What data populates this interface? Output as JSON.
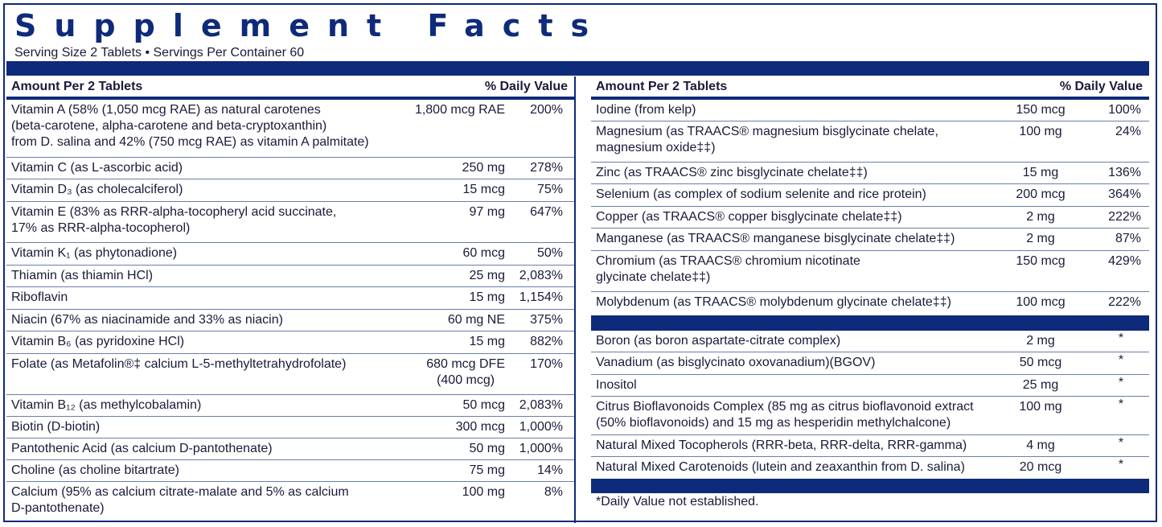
{
  "title": "Supplement Facts",
  "serving": "Serving Size 2 Tablets • Servings Per Container 60",
  "header": {
    "amount_label": "Amount Per 2 Tablets",
    "dv_label": "% Daily Value"
  },
  "left_rows": [
    {
      "name": "Vitamin A (58% (1,050 mcg RAE) as natural carotenes\n  (beta-carotene, alpha-carotene and beta-cryptoxanthin)\n  from D. salina and 42% (750 mcg RAE) as vitamin A palmitate)",
      "amount": "1,800 mcg RAE",
      "dv": "200%"
    },
    {
      "name": "Vitamin C (as L-ascorbic acid)",
      "amount": "250 mg",
      "dv": "278%"
    },
    {
      "name": "Vitamin D₃ (as cholecalciferol)",
      "amount": "15 mcg",
      "dv": "75%"
    },
    {
      "name": "Vitamin E (83% as RRR-alpha-tocopheryl acid succinate,\n  17% as RRR-alpha-tocopherol)",
      "amount": "97 mg",
      "dv": "647%"
    },
    {
      "name": "Vitamin K₁ (as phytonadione)",
      "amount": "60 mcg",
      "dv": "50%"
    },
    {
      "name": "Thiamin (as thiamin HCl)",
      "amount": "25 mg",
      "dv": "2,083%"
    },
    {
      "name": "Riboflavin",
      "amount": "15 mg",
      "dv": "1,154%"
    },
    {
      "name": "Niacin (67% as niacinamide and 33% as niacin)",
      "amount": "60 mg NE",
      "dv": "375%"
    },
    {
      "name": "Vitamin B₆ (as pyridoxine HCl)",
      "amount": "15 mg",
      "dv": "882%"
    },
    {
      "name": "Folate (as Metafolin®‡ calcium L-5-methyltetrahydrofolate)",
      "amount": "680 mcg DFE\n(400 mcg)",
      "dv": "170%"
    },
    {
      "name": "Vitamin B₁₂ (as methylcobalamin)",
      "amount": "50 mcg",
      "dv": "2,083%"
    },
    {
      "name": "Biotin (D-biotin)",
      "amount": "300 mcg",
      "dv": "1,000%"
    },
    {
      "name": "Pantothenic Acid (as calcium D-pantothenate)",
      "amount": "50 mg",
      "dv": "1,000%"
    },
    {
      "name": "Choline (as choline bitartrate)",
      "amount": "75 mg",
      "dv": "14%"
    },
    {
      "name": "Calcium (95% as calcium citrate-malate and 5% as calcium\n  D-pantothenate)",
      "amount": "100 mg",
      "dv": "8%"
    }
  ],
  "right_rows": [
    {
      "name": "Iodine (from kelp)",
      "amount": "150 mcg",
      "dv": "100%"
    },
    {
      "name": "Magnesium (as TRAACS® magnesium bisglycinate chelate,\n  magnesium oxide‡‡)",
      "amount": "100 mg",
      "dv": "24%"
    },
    {
      "name": "Zinc (as TRAACS® zinc bisglycinate chelate‡‡)",
      "amount": "15 mg",
      "dv": "136%"
    },
    {
      "name": "Selenium (as complex of sodium selenite and rice protein)",
      "amount": "200 mcg",
      "dv": "364%"
    },
    {
      "name": "Copper (as TRAACS® copper bisglycinate chelate‡‡)",
      "amount": "2 mg",
      "dv": "222%"
    },
    {
      "name": "Manganese (as TRAACS® manganese bisglycinate chelate‡‡)",
      "amount": "2 mg",
      "dv": "87%"
    },
    {
      "name": "Chromium (as TRAACS® chromium nicotinate\n  glycinate chelate‡‡)",
      "amount": "150 mcg",
      "dv": "429%"
    },
    {
      "name": "Molybdenum (as TRAACS® molybdenum glycinate chelate‡‡)",
      "amount": "100 mcg",
      "dv": "222%"
    }
  ],
  "right_other": [
    {
      "name": "Boron (as boron aspartate-citrate complex)",
      "amount": "2 mg",
      "dv": "*"
    },
    {
      "name": "Vanadium (as bisglycinato oxovanadium)(BGOV)",
      "amount": "50 mcg",
      "dv": "*"
    },
    {
      "name": "Inositol",
      "amount": "25 mg",
      "dv": "*"
    },
    {
      "name": "Citrus Bioflavonoids Complex (85 mg as citrus bioflavonoid extract\n  (50% bioflavonoids) and 15 mg as hesperidin methylchalcone)",
      "amount": "100 mg",
      "dv": "*"
    },
    {
      "name": "Natural Mixed Tocopherols (RRR-beta, RRR-delta, RRR-gamma)",
      "amount": "4 mg",
      "dv": "*"
    },
    {
      "name": "Natural Mixed Carotenoids (lutein and zeaxanthin from D. salina)",
      "amount": "20 mcg",
      "dv": "*"
    }
  ],
  "footnote": "*Daily Value not established.",
  "colors": {
    "accent": "#0e2a7a",
    "rule": "#6b7ea8"
  }
}
